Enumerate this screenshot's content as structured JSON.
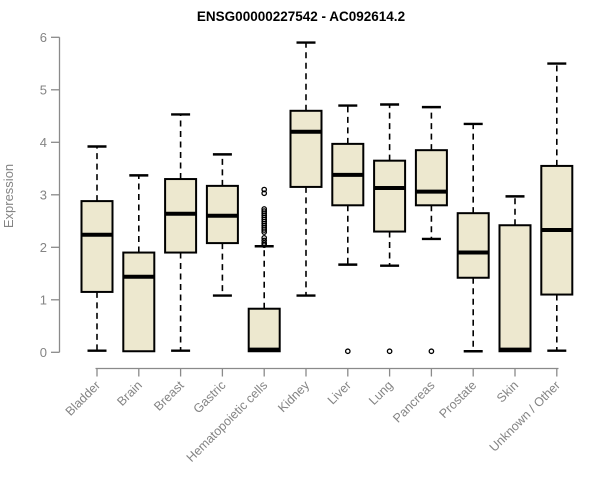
{
  "title": "ENSG00000227542 - AC092614.2",
  "chart_data": {
    "type": "boxplot",
    "title": "ENSG00000227542 - AC092614.2",
    "xlabel": "",
    "ylabel": "Expression",
    "ylim": [
      0,
      6
    ],
    "yticks": [
      0,
      1,
      2,
      3,
      4,
      5,
      6
    ],
    "grid": false,
    "legend": "none",
    "colors": {
      "box_fill": "#EDE8CF",
      "box_stroke": "#000000",
      "median": "#000000",
      "whisker": "#000000",
      "axis": "#8a8a8a",
      "tick_label": "#848484",
      "title": "#000000",
      "background": "#ffffff"
    },
    "categories": [
      "Bladder",
      "Brain",
      "Breast",
      "Gastric",
      "Hematopoietic cells",
      "Kidney",
      "Liver",
      "Lung",
      "Pancreas",
      "Prostate",
      "Skin",
      "Unknown / Other"
    ],
    "series": [
      {
        "name": "Bladder",
        "low": 0.03,
        "q1": 1.15,
        "median": 2.24,
        "q3": 2.88,
        "high": 3.92,
        "outliers": []
      },
      {
        "name": "Brain",
        "low": 0.02,
        "q1": 0.02,
        "median": 1.44,
        "q3": 1.9,
        "high": 3.37,
        "outliers": []
      },
      {
        "name": "Breast",
        "low": 0.03,
        "q1": 1.9,
        "median": 2.64,
        "q3": 3.3,
        "high": 4.53,
        "outliers": []
      },
      {
        "name": "Gastric",
        "low": 1.08,
        "q1": 2.08,
        "median": 2.6,
        "q3": 3.17,
        "high": 3.77,
        "outliers": []
      },
      {
        "name": "Hematopoietic cells",
        "low": 0.02,
        "q1": 0.02,
        "median": 0.05,
        "q3": 0.83,
        "high": 2.02,
        "outliers": [
          2.04,
          2.08,
          2.13,
          2.18,
          2.29,
          2.33,
          2.37,
          2.41,
          2.45,
          2.49,
          2.53,
          2.57,
          2.61,
          2.65,
          2.69,
          2.73,
          3.03,
          3.1
        ]
      },
      {
        "name": "Kidney",
        "low": 1.08,
        "q1": 3.15,
        "median": 4.2,
        "q3": 4.6,
        "high": 5.9,
        "outliers": []
      },
      {
        "name": "Liver",
        "low": 1.67,
        "q1": 2.8,
        "median": 3.38,
        "q3": 3.97,
        "high": 4.7,
        "outliers": [
          0.02
        ]
      },
      {
        "name": "Lung",
        "low": 1.65,
        "q1": 2.3,
        "median": 3.13,
        "q3": 3.65,
        "high": 4.72,
        "outliers": [
          0.02
        ]
      },
      {
        "name": "Pancreas",
        "low": 2.16,
        "q1": 2.8,
        "median": 3.06,
        "q3": 3.85,
        "high": 4.67,
        "outliers": [
          0.02
        ]
      },
      {
        "name": "Prostate",
        "low": 0.02,
        "q1": 1.42,
        "median": 1.9,
        "q3": 2.65,
        "high": 4.35,
        "outliers": []
      },
      {
        "name": "Skin",
        "low": 0.02,
        "q1": 0.02,
        "median": 0.05,
        "q3": 2.42,
        "high": 2.97,
        "outliers": []
      },
      {
        "name": "Unknown / Other",
        "low": 0.03,
        "q1": 1.1,
        "median": 2.33,
        "q3": 3.55,
        "high": 5.5,
        "outliers": []
      }
    ]
  }
}
